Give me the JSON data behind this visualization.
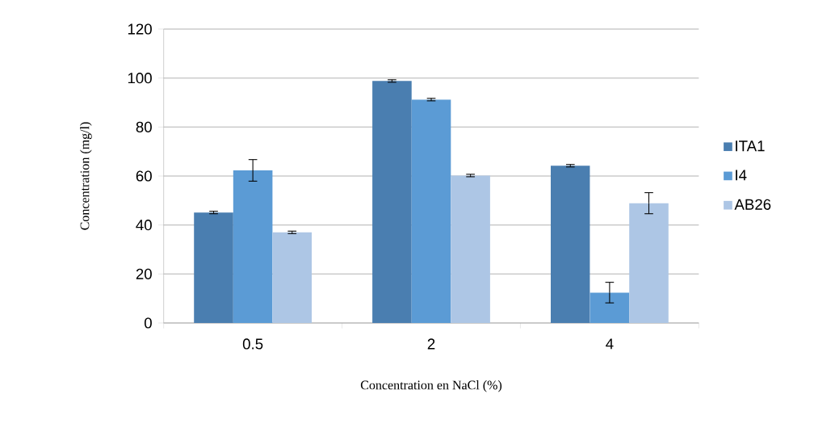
{
  "chart_data": {
    "type": "bar",
    "xlabel": "Concentration en NaCl (%)",
    "ylabel": "Concentration (mg/l)",
    "categories": [
      "0.5",
      "2",
      "4"
    ],
    "series": [
      {
        "name": "ITA1",
        "color": "#4a7eb0",
        "values": [
          45.1,
          98.8,
          64.2
        ],
        "errors": [
          0.5,
          0.5,
          0.5
        ]
      },
      {
        "name": "I4",
        "color": "#5b9bd5",
        "values": [
          62.3,
          91.2,
          12.4
        ],
        "errors": [
          4.4,
          0.5,
          4.2
        ]
      },
      {
        "name": "AB26",
        "color": "#adc6e5",
        "values": [
          37.0,
          60.2,
          48.9
        ],
        "errors": [
          0.5,
          0.5,
          4.3
        ]
      }
    ],
    "ylim": [
      0,
      120
    ],
    "yticks": [
      0,
      20,
      40,
      60,
      80,
      100,
      120
    ],
    "grid": "y",
    "legend": "right"
  }
}
